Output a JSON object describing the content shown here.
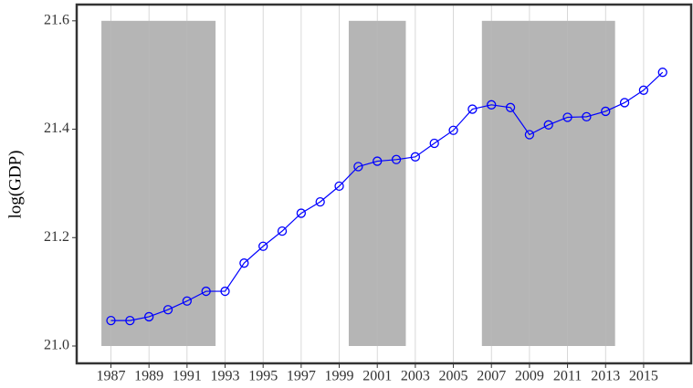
{
  "chart_data": {
    "type": "line",
    "y_label": "log(GDP)",
    "x": [
      1987,
      1988,
      1989,
      1990,
      1991,
      1992,
      1993,
      1994,
      1995,
      1996,
      1997,
      1998,
      1999,
      2000,
      2001,
      2002,
      2003,
      2004,
      2005,
      2006,
      2007,
      2008,
      2009,
      2010,
      2011,
      2012,
      2013,
      2014,
      2015,
      2016
    ],
    "values": [
      21.047,
      21.047,
      21.054,
      21.067,
      21.083,
      21.101,
      21.101,
      21.153,
      21.184,
      21.212,
      21.245,
      21.266,
      21.295,
      21.331,
      21.341,
      21.344,
      21.349,
      21.374,
      21.398,
      21.437,
      21.445,
      21.44,
      21.39,
      21.408,
      21.422,
      21.423,
      21.433,
      21.449,
      21.472,
      21.505
    ],
    "color": "#0000ff",
    "shaded_regions": [
      {
        "xmin": 1986.5,
        "xmax": 1992.5,
        "ymin": 21.0,
        "ymax": 21.6
      },
      {
        "xmin": 1999.5,
        "xmax": 2002.5,
        "ymin": 21.0,
        "ymax": 21.6
      },
      {
        "xmin": 2006.5,
        "xmax": 2013.5,
        "ymin": 21.0,
        "ymax": 21.6
      }
    ],
    "shade_color": "#b5b5b5",
    "xlim": [
      1985.2,
      2017.5
    ],
    "ylim": [
      20.968,
      21.63
    ],
    "xticks": [
      1987,
      1989,
      1991,
      1993,
      1995,
      1997,
      1999,
      2001,
      2003,
      2005,
      2007,
      2009,
      2011,
      2013,
      2015
    ],
    "yticks": [
      {
        "value": 21,
        "label": "21.0"
      },
      21.2,
      21.4,
      21.6
    ],
    "grid": "x"
  }
}
